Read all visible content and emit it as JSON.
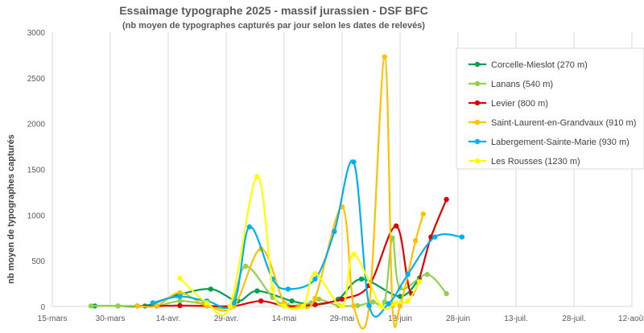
{
  "chart_data": {
    "type": "line",
    "title": "Essaimage typographe 2025 - massif jurassien - DSF BFC",
    "subtitle": "(nb moyen de typographes capturés par jour selon les dates de relevés)",
    "xlabel": "",
    "ylabel": "nb moyen de typographes capturés",
    "x_ticks": [
      "15-mars",
      "30-mars",
      "14-avr.",
      "29-avr.",
      "14-mai",
      "29-mai",
      "13-juin",
      "28-juin",
      "13-juil.",
      "28-juil.",
      "12-août"
    ],
    "x_range_days": [
      0,
      150
    ],
    "ylim": [
      0,
      3000
    ],
    "y_ticks": [
      0,
      500,
      1000,
      1500,
      2000,
      2500,
      3000
    ],
    "grid": "vertical",
    "legend_position": "right",
    "series": [
      {
        "name": "Corcelle-Mieslot (270 m)",
        "color": "#00a050",
        "x": [
          11,
          17,
          24,
          32,
          41,
          48,
          53,
          62,
          68,
          74,
          80,
          90,
          95
        ],
        "y": [
          5,
          5,
          5,
          120,
          190,
          60,
          170,
          60,
          20,
          80,
          300,
          110,
          310
        ]
      },
      {
        "name": "Lanans (540 m)",
        "color": "#92d050",
        "x": [
          10,
          17,
          22,
          27,
          33,
          39,
          46,
          50,
          57,
          61,
          67,
          69,
          74,
          79,
          83,
          86,
          88,
          90,
          97,
          102
        ],
        "y": [
          5,
          5,
          5,
          5,
          60,
          30,
          5,
          440,
          100,
          10,
          40,
          80,
          10,
          10,
          50,
          50,
          750,
          200,
          350,
          140
        ]
      },
      {
        "name": "Levier (800 m)",
        "color": "#e00000",
        "x": [
          22,
          27,
          33,
          40,
          47,
          54,
          60,
          65,
          68,
          75,
          82,
          89,
          93,
          98,
          102
        ],
        "y": [
          5,
          5,
          10,
          5,
          5,
          60,
          5,
          5,
          20,
          80,
          230,
          880,
          140,
          760,
          1170
        ]
      },
      {
        "name": "Saint-Laurent-en-Grandvaux (910 m)",
        "color": "#ffc000",
        "x": [
          22,
          27,
          33,
          40,
          47,
          54,
          60,
          64,
          68,
          75,
          78,
          82,
          86,
          88,
          90,
          94,
          96
        ],
        "y": [
          5,
          5,
          150,
          5,
          5,
          630,
          40,
          5,
          90,
          1090,
          5,
          5,
          2730,
          5,
          5,
          720,
          1010
        ]
      },
      {
        "name": "Labergement-Sainte-Marie (930 m)",
        "color": "#00b0f0",
        "x": [
          26,
          33,
          40,
          47,
          51,
          57,
          61,
          68,
          73,
          78,
          82,
          87,
          92,
          99,
          106
        ],
        "y": [
          40,
          110,
          60,
          40,
          870,
          300,
          190,
          300,
          820,
          1580,
          10,
          30,
          350,
          760,
          760
        ]
      },
      {
        "name": "Les Rousses (1230 m)",
        "color": "#ffff00",
        "x": [
          33,
          40,
          46,
          53,
          57,
          60,
          65,
          68,
          75,
          78,
          85,
          89,
          92,
          95
        ],
        "y": [
          310,
          40,
          5,
          1420,
          200,
          5,
          5,
          360,
          5,
          570,
          5,
          40,
          60,
          270
        ]
      }
    ]
  }
}
